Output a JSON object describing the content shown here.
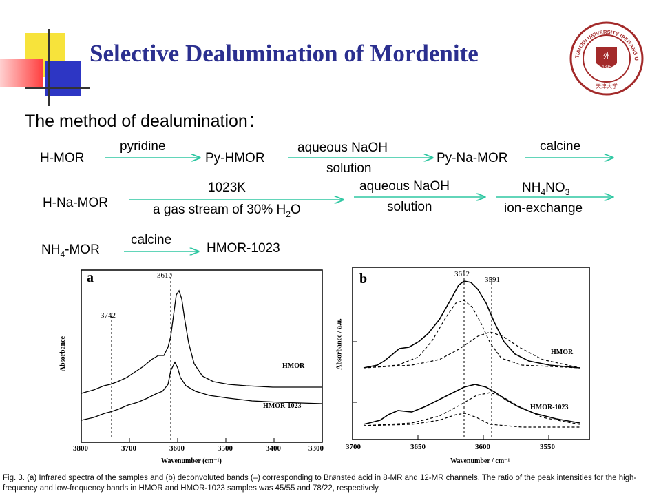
{
  "slide": {
    "title": "Selective Dealumination of Mordenite",
    "subtitle": "The method of dealumination："
  },
  "flow": {
    "row1": {
      "s1": "H-MOR",
      "a1": "pyridine",
      "s2": "Py-HMOR",
      "a2_line1": "aqueous NaOH",
      "a2_line2": "solution",
      "s3": "Py-Na-MOR",
      "a3": "calcine"
    },
    "row2": {
      "s1": "H-Na-MOR",
      "a1_line1": "1023K",
      "a1_line2_pre": "a gas stream of 30%  H",
      "a1_line2_sub": "2",
      "a1_line2_post": "O",
      "a2_line1": "aqueous NaOH",
      "a2_line2": "solution",
      "a3_pre": "NH",
      "a3_sub1": "4",
      "a3_mid": "NO",
      "a3_sub2": "3",
      "a3_line2": "ion-exchange"
    },
    "row3": {
      "s1_pre": "NH",
      "s1_sub": "4",
      "s1_post": "-MOR",
      "a1": "calcine",
      "s2": "HMOR-1023"
    }
  },
  "figure": {
    "caption": "Fig. 3. (a) Infrared spectra of the samples and (b) deconvoluted bands (–) corresponding to Brønsted acid in 8-MR and 12-MR channels. The ratio of the peak intensities for the high-frequency and low-frequency bands in HMOR and HMOR-1023 samples was 45/55 and 78/22, respectively.",
    "panel_a": {
      "label": "a",
      "ylabel": "Absorbance",
      "xlabel": "Wavenumber  (cm⁻¹)",
      "xticks": [
        "3800",
        "3700",
        "3600",
        "3500",
        "3400",
        "3300"
      ],
      "peak1": "3610",
      "peak2": "3742",
      "curve1": "HMOR",
      "curve2": "HMOR-1023"
    },
    "panel_b": {
      "label": "b",
      "ylabel": "Absorbance / a.u.",
      "xlabel": "Wavenumber / cm⁻¹",
      "xticks": [
        "3700",
        "3650",
        "3600",
        "3550"
      ],
      "peak1": "3612",
      "peak2": "3591",
      "curve1": "HMOR",
      "curve2": "HMOR-1023"
    }
  },
  "colors": {
    "title": "#2b2f8f",
    "arrow": "#2fc7a2"
  },
  "logo_text": "TIANJIN UNIVERSITY (PEIYANG UNIVERSITY) 1895"
}
